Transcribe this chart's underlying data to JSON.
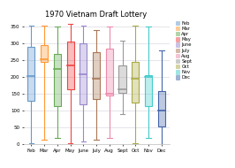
{
  "title": "1970 Vietnam Draft Lottery",
  "months": [
    "Feb",
    "Mar",
    "Apr",
    "May",
    "June",
    "July",
    "Aug",
    "Sept",
    "Oct",
    "Nov",
    "Dec"
  ],
  "colors": [
    "#6699CC",
    "#FF9933",
    "#66AA55",
    "#EE4444",
    "#9988CC",
    "#AA7755",
    "#EE88AA",
    "#999999",
    "#AAAA44",
    "#44CCCC",
    "#4466AA"
  ],
  "box_data": {
    "Feb": {
      "min": 5,
      "q1": 130,
      "median": 205,
      "q3": 290,
      "max": 355
    },
    "Mar": {
      "min": 15,
      "q1": 245,
      "median": 255,
      "q3": 295,
      "max": 355
    },
    "Apr": {
      "min": 20,
      "q1": 115,
      "median": 225,
      "q3": 270,
      "max": 350
    },
    "May": {
      "min": 5,
      "q1": 165,
      "median": 235,
      "q3": 305,
      "max": 360
    },
    "June": {
      "min": 10,
      "q1": 120,
      "median": 210,
      "q3": 300,
      "max": 355
    },
    "July": {
      "min": 15,
      "q1": 135,
      "median": 195,
      "q3": 275,
      "max": 340
    },
    "Aug": {
      "min": 20,
      "q1": 145,
      "median": 150,
      "q3": 285,
      "max": 350
    },
    "Sept": {
      "min": 90,
      "q1": 155,
      "median": 165,
      "q3": 235,
      "max": 310
    },
    "Oct": {
      "min": 5,
      "q1": 125,
      "median": 195,
      "q3": 245,
      "max": 355
    },
    "Nov": {
      "min": 20,
      "q1": 115,
      "median": 200,
      "q3": 205,
      "max": 350
    },
    "Dec": {
      "min": 1,
      "q1": 55,
      "median": 100,
      "q3": 160,
      "max": 280
    }
  },
  "ylim": [
    0,
    370
  ],
  "yticks": [
    0,
    50,
    100,
    150,
    200,
    250,
    300,
    350
  ],
  "bg_color": "#FFFFFF",
  "grid_color": "#E0E0E8",
  "legend_labels": [
    "Feb",
    "Mar",
    "Apr",
    "May",
    "June",
    "July",
    "Aug",
    "Sept",
    "Oct",
    "Nov",
    "Dec"
  ]
}
